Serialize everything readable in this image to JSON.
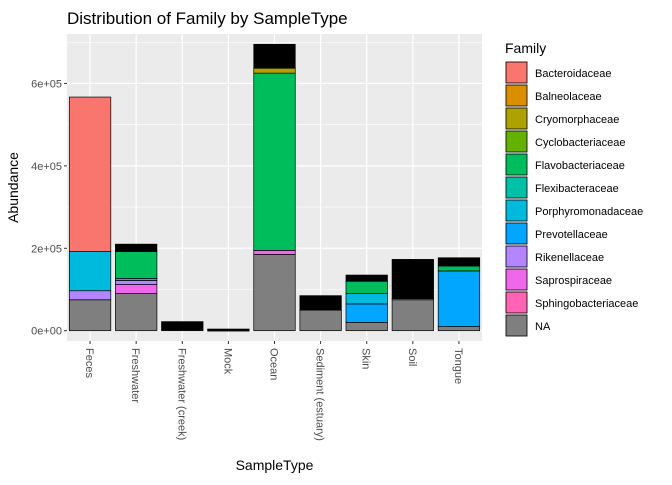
{
  "chart_data": {
    "type": "bar",
    "stacked": true,
    "title": "Distribution of Family by SampleType",
    "xlabel": "SampleType",
    "ylabel": "Abundance",
    "ylim": [
      -25000,
      720000
    ],
    "y_ticks": [
      0,
      200000,
      400000,
      600000
    ],
    "y_tick_labels": [
      "0e+00",
      "2e+05",
      "4e+05",
      "6e+05"
    ],
    "grid": true,
    "legend_position": "right",
    "legend_title": "Family",
    "categories": [
      "Feces",
      "Freshwater",
      "Freshwater (creek)",
      "Mock",
      "Ocean",
      "Sediment (estuary)",
      "Skin",
      "Soil",
      "Tongue"
    ],
    "series": [
      {
        "name": "Bacteroidaceae",
        "color": "#F8766D",
        "values": [
          375000,
          0,
          0,
          0,
          0,
          0,
          0,
          0,
          0
        ]
      },
      {
        "name": "Balneolaceae",
        "color": "#DB8E00",
        "values": [
          0,
          0,
          0,
          0,
          0,
          0,
          0,
          0,
          0
        ]
      },
      {
        "name": "Cryomorphaceae",
        "color": "#AEA200",
        "values": [
          0,
          0,
          0,
          0,
          12000,
          0,
          0,
          0,
          0
        ]
      },
      {
        "name": "Cyclobacteriaceae",
        "color": "#64B200",
        "values": [
          0,
          0,
          0,
          0,
          0,
          0,
          0,
          0,
          0
        ]
      },
      {
        "name": "Flavobacteriaceae",
        "color": "#00BD5C",
        "values": [
          0,
          65000,
          0,
          0,
          430000,
          0,
          30000,
          0,
          12000
        ]
      },
      {
        "name": "Flexibacteraceae",
        "color": "#00C1A7",
        "values": [
          0,
          0,
          0,
          0,
          0,
          0,
          0,
          3000,
          0
        ]
      },
      {
        "name": "Porphyromonadaceae",
        "color": "#00BADE",
        "values": [
          95000,
          5000,
          0,
          0,
          0,
          0,
          25000,
          0,
          0
        ]
      },
      {
        "name": "Prevotellaceae",
        "color": "#00A6FF",
        "values": [
          0,
          0,
          0,
          0,
          0,
          0,
          45000,
          0,
          135000
        ]
      },
      {
        "name": "Rikenellaceae",
        "color": "#B385FF",
        "values": [
          22000,
          10000,
          0,
          0,
          0,
          0,
          0,
          0,
          0
        ]
      },
      {
        "name": "Saprospiraceae",
        "color": "#EF67EB",
        "values": [
          0,
          22000,
          0,
          0,
          10000,
          0,
          0,
          0,
          0
        ]
      },
      {
        "name": "Sphingobacteriaceae",
        "color": "#FF63B6",
        "values": [
          0,
          0,
          0,
          0,
          0,
          0,
          0,
          0,
          0
        ]
      },
      {
        "name": "NA",
        "color": "#7F7F7F",
        "values": [
          75000,
          90000,
          2000,
          1000,
          185000,
          50000,
          20000,
          75000,
          10000
        ]
      }
    ],
    "other_values": [
      0,
      18000,
      20000,
      3000,
      58000,
      35000,
      15000,
      95000,
      20000
    ],
    "other_color": "#000000"
  }
}
